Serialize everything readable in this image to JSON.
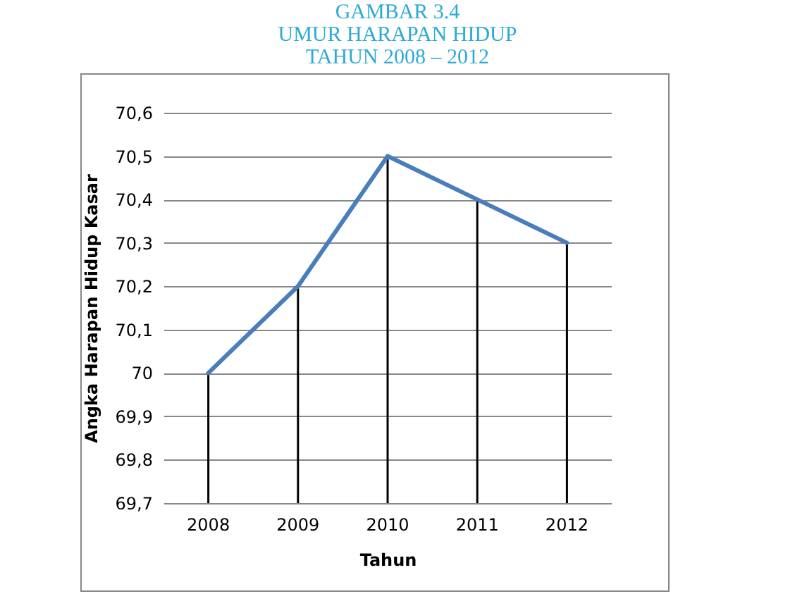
{
  "chart_data": {
    "type": "line",
    "title": "GAMBAR 3.4\nUMUR HARAPAN HIDUP\nTAHUN 2008 – 2012",
    "xlabel": "Tahun",
    "ylabel": "Angka Harapan Hidup Kasar",
    "categories": [
      "2008",
      "2009",
      "2010",
      "2011",
      "2012"
    ],
    "series": [
      {
        "type": "bar",
        "color": "#000000",
        "values": [
          70,
          70.2,
          70.5,
          70.4,
          70.3
        ]
      },
      {
        "color": "#4a7ebb",
        "values": [
          70,
          70.2,
          70.5,
          70.4,
          70.3
        ]
      }
    ],
    "ylim": [
      69.7,
      70.6
    ],
    "yticks": [
      {
        "value": 69.7,
        "label": "69,7"
      },
      {
        "value": 69.8,
        "label": "69,8"
      },
      {
        "value": 69.9,
        "label": "69,9"
      },
      70,
      {
        "value": 70.1,
        "label": "70,1"
      },
      {
        "value": 70.2,
        "label": "70,2"
      },
      {
        "value": 70.3,
        "label": "70,3"
      },
      {
        "value": 70.4,
        "label": "70,4"
      },
      {
        "value": 70.5,
        "label": "70,5"
      },
      {
        "value": 70.6,
        "label": "70,6"
      }
    ],
    "grid": "y"
  }
}
